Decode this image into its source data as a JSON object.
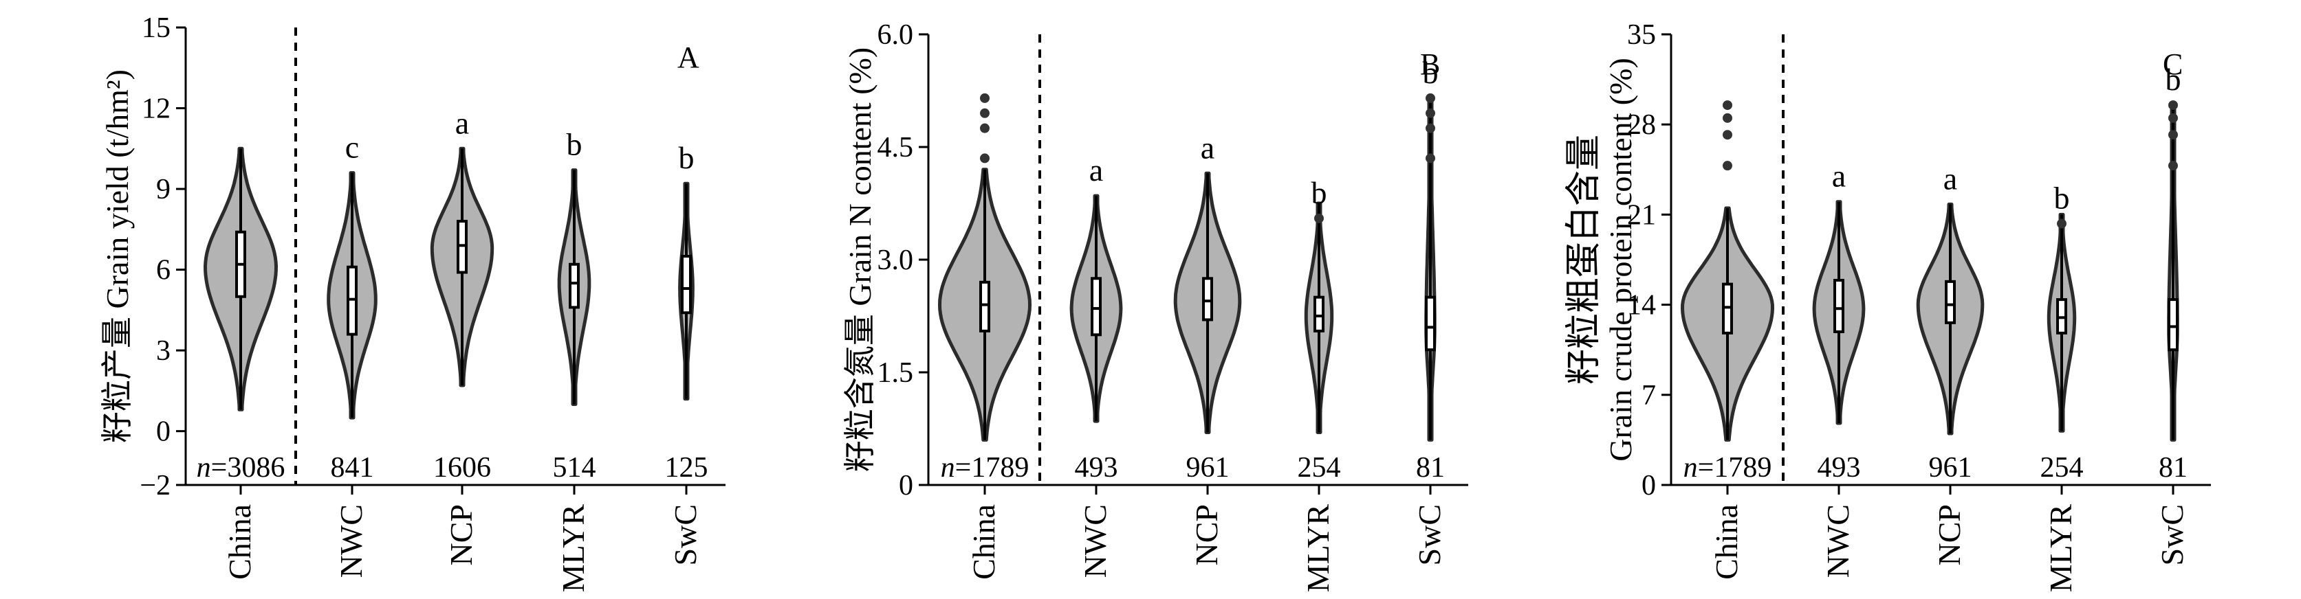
{
  "chart_data": [
    {
      "type": "violin",
      "panel_label": "A",
      "ylabel_cn": "籽粒产量",
      "ylabel_en": "Grain yield (t/hm²)",
      "ylim": [
        -2,
        15
      ],
      "yticks": [
        "−2",
        "0",
        "3",
        "6",
        "9",
        "12",
        "15"
      ],
      "ytick_values": [
        -2,
        0,
        3,
        6,
        9,
        12,
        15
      ],
      "categories": [
        "China",
        "NWC",
        "NCP",
        "MLYR",
        "SwC"
      ],
      "n_labels": [
        "n=3086",
        "841",
        "1606",
        "514",
        "125"
      ],
      "letters": [
        "",
        "c",
        "a",
        "b",
        "b"
      ],
      "violins": [
        {
          "min": 0.8,
          "q1": 5.0,
          "median": 6.2,
          "q3": 7.4,
          "max": 10.5,
          "mode": 6.1,
          "peak": 0.33
        },
        {
          "min": 0.5,
          "q1": 3.6,
          "median": 4.9,
          "q3": 6.1,
          "max": 9.6,
          "mode": 4.9,
          "peak": 0.22
        },
        {
          "min": 1.7,
          "q1": 5.9,
          "median": 6.9,
          "q3": 7.8,
          "max": 10.5,
          "mode": 6.8,
          "peak": 0.28
        },
        {
          "min": 1.0,
          "q1": 4.6,
          "median": 5.5,
          "q3": 6.2,
          "max": 9.7,
          "mode": 5.5,
          "peak": 0.14
        },
        {
          "min": 1.2,
          "q1": 4.4,
          "median": 5.3,
          "q3": 6.5,
          "max": 9.2,
          "mode": 5.3,
          "peak": 0.06
        }
      ],
      "outliers": [
        [],
        [],
        [],
        [],
        []
      ]
    },
    {
      "type": "violin",
      "panel_label": "B",
      "ylabel_cn": "籽粒含氮量",
      "ylabel_en": "Grain N content (%)",
      "ylim": [
        0,
        6.0
      ],
      "yticks": [
        "0",
        "1.5",
        "3.0",
        "4.5",
        "6.0"
      ],
      "ytick_values": [
        0,
        1.5,
        3.0,
        4.5,
        6.0
      ],
      "categories": [
        "China",
        "NWC",
        "NCP",
        "MLYR",
        "SwC"
      ],
      "n_labels": [
        "n=1789",
        "493",
        "961",
        "254",
        "81"
      ],
      "letters": [
        "",
        "a",
        "a",
        "b",
        "b"
      ],
      "violins": [
        {
          "min": 0.6,
          "q1": 2.05,
          "median": 2.4,
          "q3": 2.7,
          "max": 4.2,
          "mode": 2.4,
          "peak": 0.42
        },
        {
          "min": 0.85,
          "q1": 2.0,
          "median": 2.35,
          "q3": 2.75,
          "max": 3.85,
          "mode": 2.35,
          "peak": 0.23
        },
        {
          "min": 0.7,
          "q1": 2.2,
          "median": 2.45,
          "q3": 2.75,
          "max": 4.15,
          "mode": 2.45,
          "peak": 0.3
        },
        {
          "min": 0.7,
          "q1": 2.05,
          "median": 2.25,
          "q3": 2.5,
          "max": 3.75,
          "mode": 2.25,
          "peak": 0.12
        },
        {
          "min": 0.6,
          "q1": 1.8,
          "median": 2.1,
          "q3": 2.5,
          "max": 5.1,
          "mode": 2.1,
          "peak": 0.04
        }
      ],
      "outliers": [
        [
          4.35,
          4.75,
          4.95,
          5.15
        ],
        [],
        [],
        [
          3.55
        ],
        [
          4.35,
          4.75,
          4.95,
          5.15
        ]
      ]
    },
    {
      "type": "violin",
      "panel_label": "C",
      "ylabel_cn": "籽粒粗蛋白含量",
      "ylabel_en": "Grain crude protein content (%)",
      "ylim": [
        0,
        35
      ],
      "yticks": [
        "0",
        "7",
        "14",
        "21",
        "28",
        "35"
      ],
      "ytick_values": [
        0,
        7,
        14,
        21,
        28,
        35
      ],
      "categories": [
        "China",
        "NWC",
        "NCP",
        "MLYR",
        "SwC"
      ],
      "n_labels": [
        "n=1789",
        "493",
        "961",
        "254",
        "81"
      ],
      "letters": [
        "",
        "a",
        "a",
        "b",
        "b"
      ],
      "violins": [
        {
          "min": 3.5,
          "q1": 11.8,
          "median": 13.8,
          "q3": 15.6,
          "max": 21.5,
          "mode": 13.8,
          "peak": 0.42
        },
        {
          "min": 4.8,
          "q1": 11.9,
          "median": 13.7,
          "q3": 15.9,
          "max": 22.0,
          "mode": 13.7,
          "peak": 0.23
        },
        {
          "min": 4.0,
          "q1": 12.6,
          "median": 14.0,
          "q3": 15.8,
          "max": 21.8,
          "mode": 14.0,
          "peak": 0.3
        },
        {
          "min": 4.2,
          "q1": 11.8,
          "median": 13.0,
          "q3": 14.4,
          "max": 21.0,
          "mode": 13.0,
          "peak": 0.12
        },
        {
          "min": 3.5,
          "q1": 10.5,
          "median": 12.3,
          "q3": 14.4,
          "max": 29.5,
          "mode": 12.3,
          "peak": 0.04
        }
      ],
      "outliers": [
        [
          24.8,
          27.2,
          28.5,
          29.5
        ],
        [],
        [],
        [
          20.3
        ],
        [
          24.8,
          27.2,
          28.5,
          29.5
        ]
      ]
    }
  ]
}
